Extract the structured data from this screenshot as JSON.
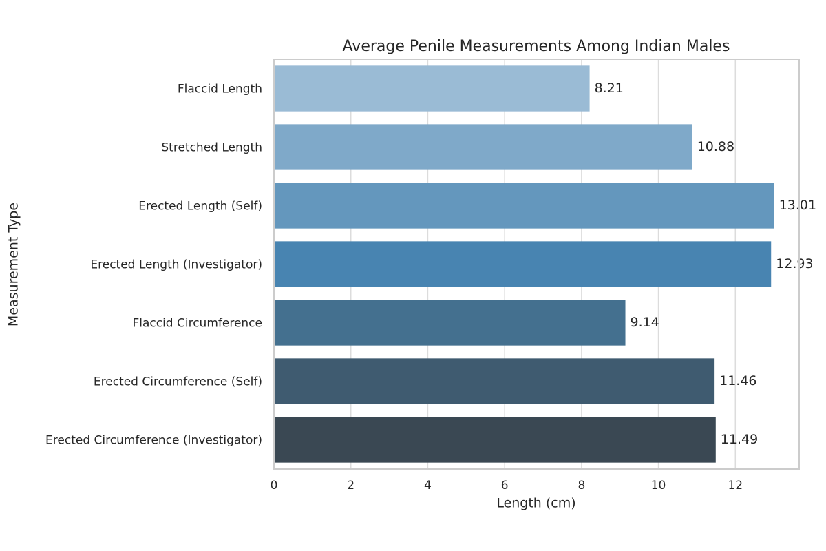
{
  "chart_data": {
    "type": "barh",
    "title": "Average Penile Measurements Among Indian Males",
    "x_label": "Length (cm)",
    "y_label": "Measurement Type",
    "categories": [
      "Flaccid Length",
      "Stretched Length",
      "Erected Length (Self)",
      "Erected Length (Investigator)",
      "Flaccid Circumference",
      "Erected Circumference (Self)",
      "Erected Circumference (Investigator)"
    ],
    "values": [
      8.21,
      10.88,
      13.01,
      12.93,
      9.14,
      11.46,
      11.49
    ],
    "colors": [
      "#9abbd5",
      "#7fa9c9",
      "#6497bd",
      "#4884b1",
      "#44708f",
      "#3f5b70",
      "#3a4853"
    ],
    "xlim": [
      0,
      13.66
    ],
    "xticks": [
      0,
      2,
      4,
      6,
      8,
      10,
      12
    ],
    "grid": true
  }
}
